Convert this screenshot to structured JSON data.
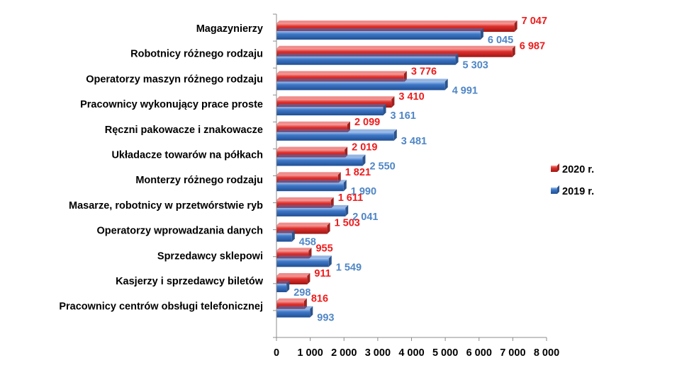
{
  "chart_data": {
    "type": "bar",
    "orientation": "horizontal",
    "categories": [
      "Magazynierzy",
      "Robotnicy różnego rodzaju",
      "Operatorzy maszyn różnego rodzaju",
      "Pracownicy wykonujący prace proste",
      "Ręczni pakowacze i znakowacze",
      "Układacze towarów na półkach",
      "Monterzy różnego rodzaju",
      "Masarze, robotnicy w przetwórstwie ryb",
      "Operatorzy wprowadzania danych",
      "Sprzedawcy sklepowi",
      "Kasjerzy i sprzedawcy biletów",
      "Pracownicy centrów obsługi telefonicznej"
    ],
    "series": [
      {
        "name": "2020 r.",
        "values": [
          7047,
          6987,
          3776,
          3410,
          2099,
          2019,
          1821,
          1611,
          1503,
          955,
          911,
          816
        ],
        "labels": [
          "7 047",
          "6 987",
          "3 776",
          "3 410",
          "2 099",
          "2 019",
          "1 821",
          "1 611",
          "1 503",
          "955",
          "911",
          "816"
        ],
        "color": "#e0302d",
        "label_color": "#ee1c1c"
      },
      {
        "name": "2019 r.",
        "values": [
          6045,
          5303,
          4991,
          3161,
          3481,
          2550,
          1990,
          2041,
          458,
          1549,
          298,
          993
        ],
        "labels": [
          "6 045",
          "5 303",
          "4 991",
          "3 161",
          "3 481",
          "2 550",
          "1 990",
          "2 041",
          "458",
          "1 549",
          "298",
          "993"
        ],
        "color": "#3f78c8",
        "label_color": "#4f86c6"
      }
    ],
    "xlim": [
      0,
      8000
    ],
    "xticks": [
      0,
      1000,
      2000,
      3000,
      4000,
      5000,
      6000,
      7000,
      8000
    ],
    "xtick_labels": [
      "0",
      "1 000",
      "2 000",
      "3 000",
      "4 000",
      "5 000",
      "6 000",
      "7 000",
      "8 000"
    ],
    "title": "",
    "xlabel": "",
    "ylabel": "",
    "grid": false,
    "legend_position": "right"
  }
}
